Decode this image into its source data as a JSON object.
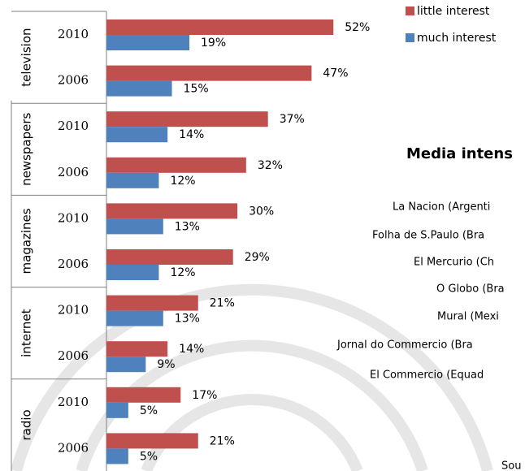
{
  "chart_data": {
    "type": "bar",
    "orientation": "horizontal",
    "legend": "top-right",
    "groups": [
      "television",
      "newspapers",
      "magazines",
      "internet",
      "radio"
    ],
    "categories": [
      "2010",
      "2006",
      "2010",
      "2006",
      "2010",
      "2006",
      "2010",
      "2006",
      "2010",
      "2006"
    ],
    "series": [
      {
        "name": "little interest",
        "color": "#c0504d",
        "values": [
          52,
          47,
          37,
          32,
          30,
          29,
          21,
          14,
          17,
          21
        ],
        "value_labels": [
          "52%",
          "47%",
          "37%",
          "32%",
          "30%",
          "29%",
          "21%",
          "14%",
          "17%",
          "21%"
        ]
      },
      {
        "name": "much interest",
        "color": "#4f81bd",
        "values": [
          19,
          15,
          14,
          12,
          13,
          12,
          13,
          9,
          5,
          5
        ],
        "value_labels": [
          "19%",
          "15%",
          "14%",
          "12%",
          "13%",
          "12%",
          "13%",
          "9%",
          "5%",
          "5%"
        ]
      }
    ]
  },
  "side_panel": {
    "title": "Media intens",
    "items": [
      "La Nacion (Argenti",
      "Folha de S.Paulo (Bra",
      "El Mercurio (Ch",
      "O Globo (Bra",
      "Mural (Mexi",
      "Jornal do Commercio (Bra",
      "El Commercio (Equad"
    ],
    "source": "Sou"
  }
}
